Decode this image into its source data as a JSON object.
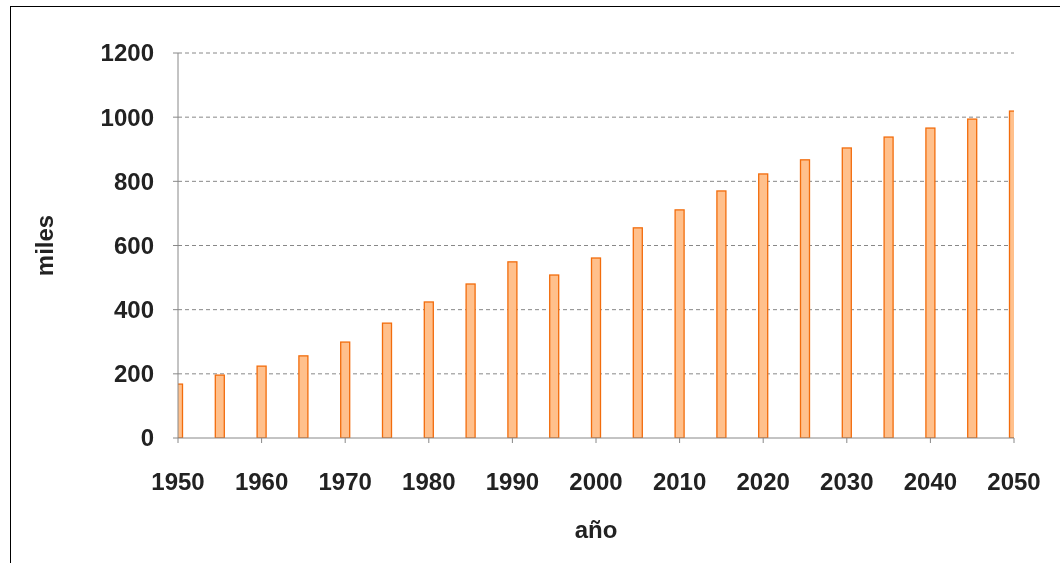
{
  "chart_data": {
    "type": "bar",
    "xlabel": "año",
    "ylabel": "miles",
    "x": [
      1950,
      1955,
      1960,
      1965,
      1970,
      1975,
      1980,
      1985,
      1990,
      1995,
      2000,
      2005,
      2010,
      2015,
      2020,
      2025,
      2030,
      2035,
      2040,
      2045,
      2050
    ],
    "values": [
      168,
      196,
      224,
      256,
      299,
      358,
      424,
      480,
      549,
      508,
      561,
      655,
      711,
      770,
      823,
      867,
      904,
      938,
      966,
      994,
      1019
    ],
    "color": "#ffc08c",
    "xlim": [
      1950,
      2050
    ],
    "xticks": [
      1950,
      1960,
      1970,
      1980,
      1990,
      2000,
      2010,
      2020,
      2030,
      2040,
      2050
    ],
    "ylim": [
      0,
      1200
    ],
    "yticks": [
      0,
      200,
      400,
      600,
      800,
      1000,
      1200
    ],
    "grid": "y"
  }
}
